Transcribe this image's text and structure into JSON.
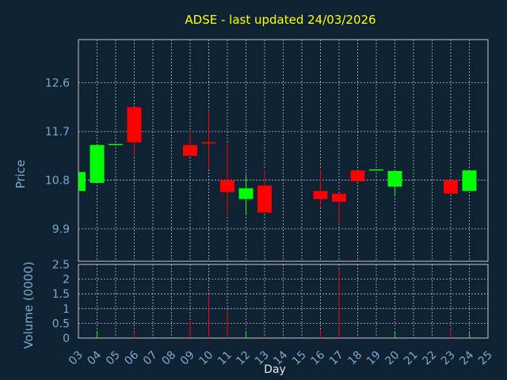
{
  "chart_data": {
    "type": "candlestick",
    "title": "ADSE - last updated 24/03/2026",
    "xlabel": "Day",
    "price_panel": {
      "ylabel": "Price",
      "ylim": [
        9.3,
        13.4
      ],
      "yticks": [
        "9.9",
        "10.8",
        "11.7",
        "12.6"
      ],
      "grid": true
    },
    "volume_panel": {
      "ylabel": "Volume (0000)",
      "ylim": [
        0,
        2.5
      ],
      "yticks": [
        "0",
        "0.5",
        "1",
        "1.5",
        "2",
        "2.5"
      ],
      "grid": true
    },
    "x_ticks": [
      "03",
      "04",
      "05",
      "06",
      "07",
      "08",
      "09",
      "10",
      "11",
      "12",
      "13",
      "14",
      "15",
      "16",
      "17",
      "18",
      "19",
      "20",
      "21",
      "22",
      "23",
      "24",
      "25"
    ],
    "candles": [
      {
        "day": "03",
        "open": 10.6,
        "close": 10.95,
        "high": 10.95,
        "low": 10.6,
        "volume": 0.0
      },
      {
        "day": "04",
        "open": 10.75,
        "close": 11.45,
        "high": 11.45,
        "low": 10.75,
        "volume": 0.25
      },
      {
        "day": "05",
        "open": 11.45,
        "close": 11.47,
        "high": 11.47,
        "low": 11.45,
        "volume": 0.02
      },
      {
        "day": "06",
        "open": 12.15,
        "close": 11.5,
        "high": 12.15,
        "low": 11.25,
        "volume": 0.22
      },
      {
        "day": "09",
        "open": 11.45,
        "close": 11.25,
        "high": 11.7,
        "low": 11.25,
        "volume": 0.6
      },
      {
        "day": "10",
        "open": 11.5,
        "close": 11.48,
        "high": 12.1,
        "low": 11.0,
        "volume": 1.45
      },
      {
        "day": "11",
        "open": 10.8,
        "close": 10.58,
        "high": 11.5,
        "low": 10.15,
        "volume": 0.87
      },
      {
        "day": "12",
        "open": 10.45,
        "close": 10.65,
        "high": 10.9,
        "low": 10.15,
        "volume": 0.22
      },
      {
        "day": "13",
        "open": 10.7,
        "close": 10.2,
        "high": 11.0,
        "low": 10.2,
        "volume": 0.08
      },
      {
        "day": "16",
        "open": 10.6,
        "close": 10.45,
        "high": 11.0,
        "low": 10.3,
        "volume": 0.27
      },
      {
        "day": "17",
        "open": 10.55,
        "close": 10.4,
        "high": 10.55,
        "low": 10.0,
        "volume": 2.35
      },
      {
        "day": "18",
        "open": 10.98,
        "close": 10.78,
        "high": 10.98,
        "low": 10.78,
        "volume": 0.05
      },
      {
        "day": "19",
        "open": 10.98,
        "close": 11.0,
        "high": 11.0,
        "low": 10.98,
        "volume": 0.02
      },
      {
        "day": "20",
        "open": 10.68,
        "close": 10.97,
        "high": 10.97,
        "low": 10.5,
        "volume": 0.23
      },
      {
        "day": "23",
        "open": 10.8,
        "close": 10.55,
        "high": 10.8,
        "low": 10.55,
        "volume": 0.32
      },
      {
        "day": "24",
        "open": 10.6,
        "close": 10.98,
        "high": 10.98,
        "low": 10.6,
        "volume": 0.18
      }
    ],
    "colors": {
      "background": "#0f2233",
      "plot_background": "#0f2233",
      "grid": "#c0c0c0",
      "frame": "#c8c8c8",
      "up": "#00ff00",
      "down": "#ff0000",
      "title": "#ffff00",
      "axis_text": "#7fa8cc",
      "xlabel": "#e6e6e6"
    },
    "legend": "none"
  }
}
